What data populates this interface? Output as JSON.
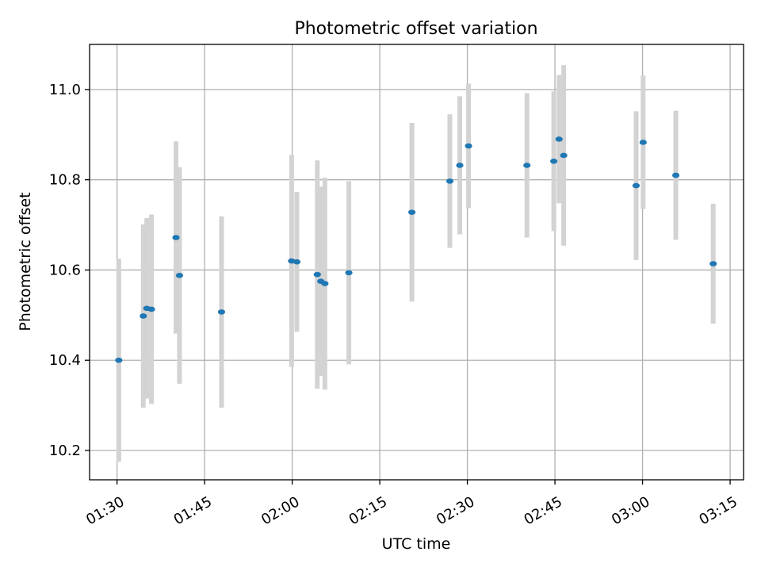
{
  "chart_data": {
    "type": "scatter",
    "title": "Photometric offset variation",
    "xlabel": "UTC time",
    "ylabel": "Photometric offset",
    "x_ticks": [
      "01:30",
      "01:45",
      "02:00",
      "02:15",
      "02:30",
      "02:45",
      "03:00",
      "03:15"
    ],
    "y_ticks": [
      "10.2",
      "10.4",
      "10.6",
      "10.8",
      "11.0"
    ],
    "xlim": [
      "01:25:18",
      "03:17:18"
    ],
    "ylim": [
      10.135,
      11.1
    ],
    "grid": true,
    "marker_color": "#1f77b4",
    "errorbar_color": "#d3d3d3",
    "points": [
      {
        "time": "01:30:18",
        "y": 10.4,
        "err": 0.225
      },
      {
        "time": "01:34:30",
        "y": 10.498,
        "err": 0.203
      },
      {
        "time": "01:35:06",
        "y": 10.515,
        "err": 0.2
      },
      {
        "time": "01:35:54",
        "y": 10.513,
        "err": 0.21
      },
      {
        "time": "01:40:06",
        "y": 10.672,
        "err": 0.213
      },
      {
        "time": "01:40:42",
        "y": 10.588,
        "err": 0.24
      },
      {
        "time": "01:47:54",
        "y": 10.507,
        "err": 0.212
      },
      {
        "time": "01:59:54",
        "y": 10.62,
        "err": 0.235
      },
      {
        "time": "02:00:48",
        "y": 10.618,
        "err": 0.155
      },
      {
        "time": "02:04:18",
        "y": 10.59,
        "err": 0.253
      },
      {
        "time": "02:04:54",
        "y": 10.575,
        "err": 0.21
      },
      {
        "time": "02:05:36",
        "y": 10.57,
        "err": 0.235
      },
      {
        "time": "02:09:42",
        "y": 10.594,
        "err": 0.203
      },
      {
        "time": "02:20:30",
        "y": 10.728,
        "err": 0.198
      },
      {
        "time": "02:27:00",
        "y": 10.797,
        "err": 0.148
      },
      {
        "time": "02:28:42",
        "y": 10.832,
        "err": 0.153
      },
      {
        "time": "02:30:12",
        "y": 10.875,
        "err": 0.138
      },
      {
        "time": "02:40:12",
        "y": 10.832,
        "err": 0.16
      },
      {
        "time": "02:44:48",
        "y": 10.841,
        "err": 0.155
      },
      {
        "time": "02:45:42",
        "y": 10.89,
        "err": 0.142
      },
      {
        "time": "02:46:30",
        "y": 10.854,
        "err": 0.2
      },
      {
        "time": "02:58:54",
        "y": 10.787,
        "err": 0.165
      },
      {
        "time": "03:00:06",
        "y": 10.883,
        "err": 0.148
      },
      {
        "time": "03:05:42",
        "y": 10.81,
        "err": 0.143
      },
      {
        "time": "03:12:06",
        "y": 10.614,
        "err": 0.133
      }
    ]
  }
}
